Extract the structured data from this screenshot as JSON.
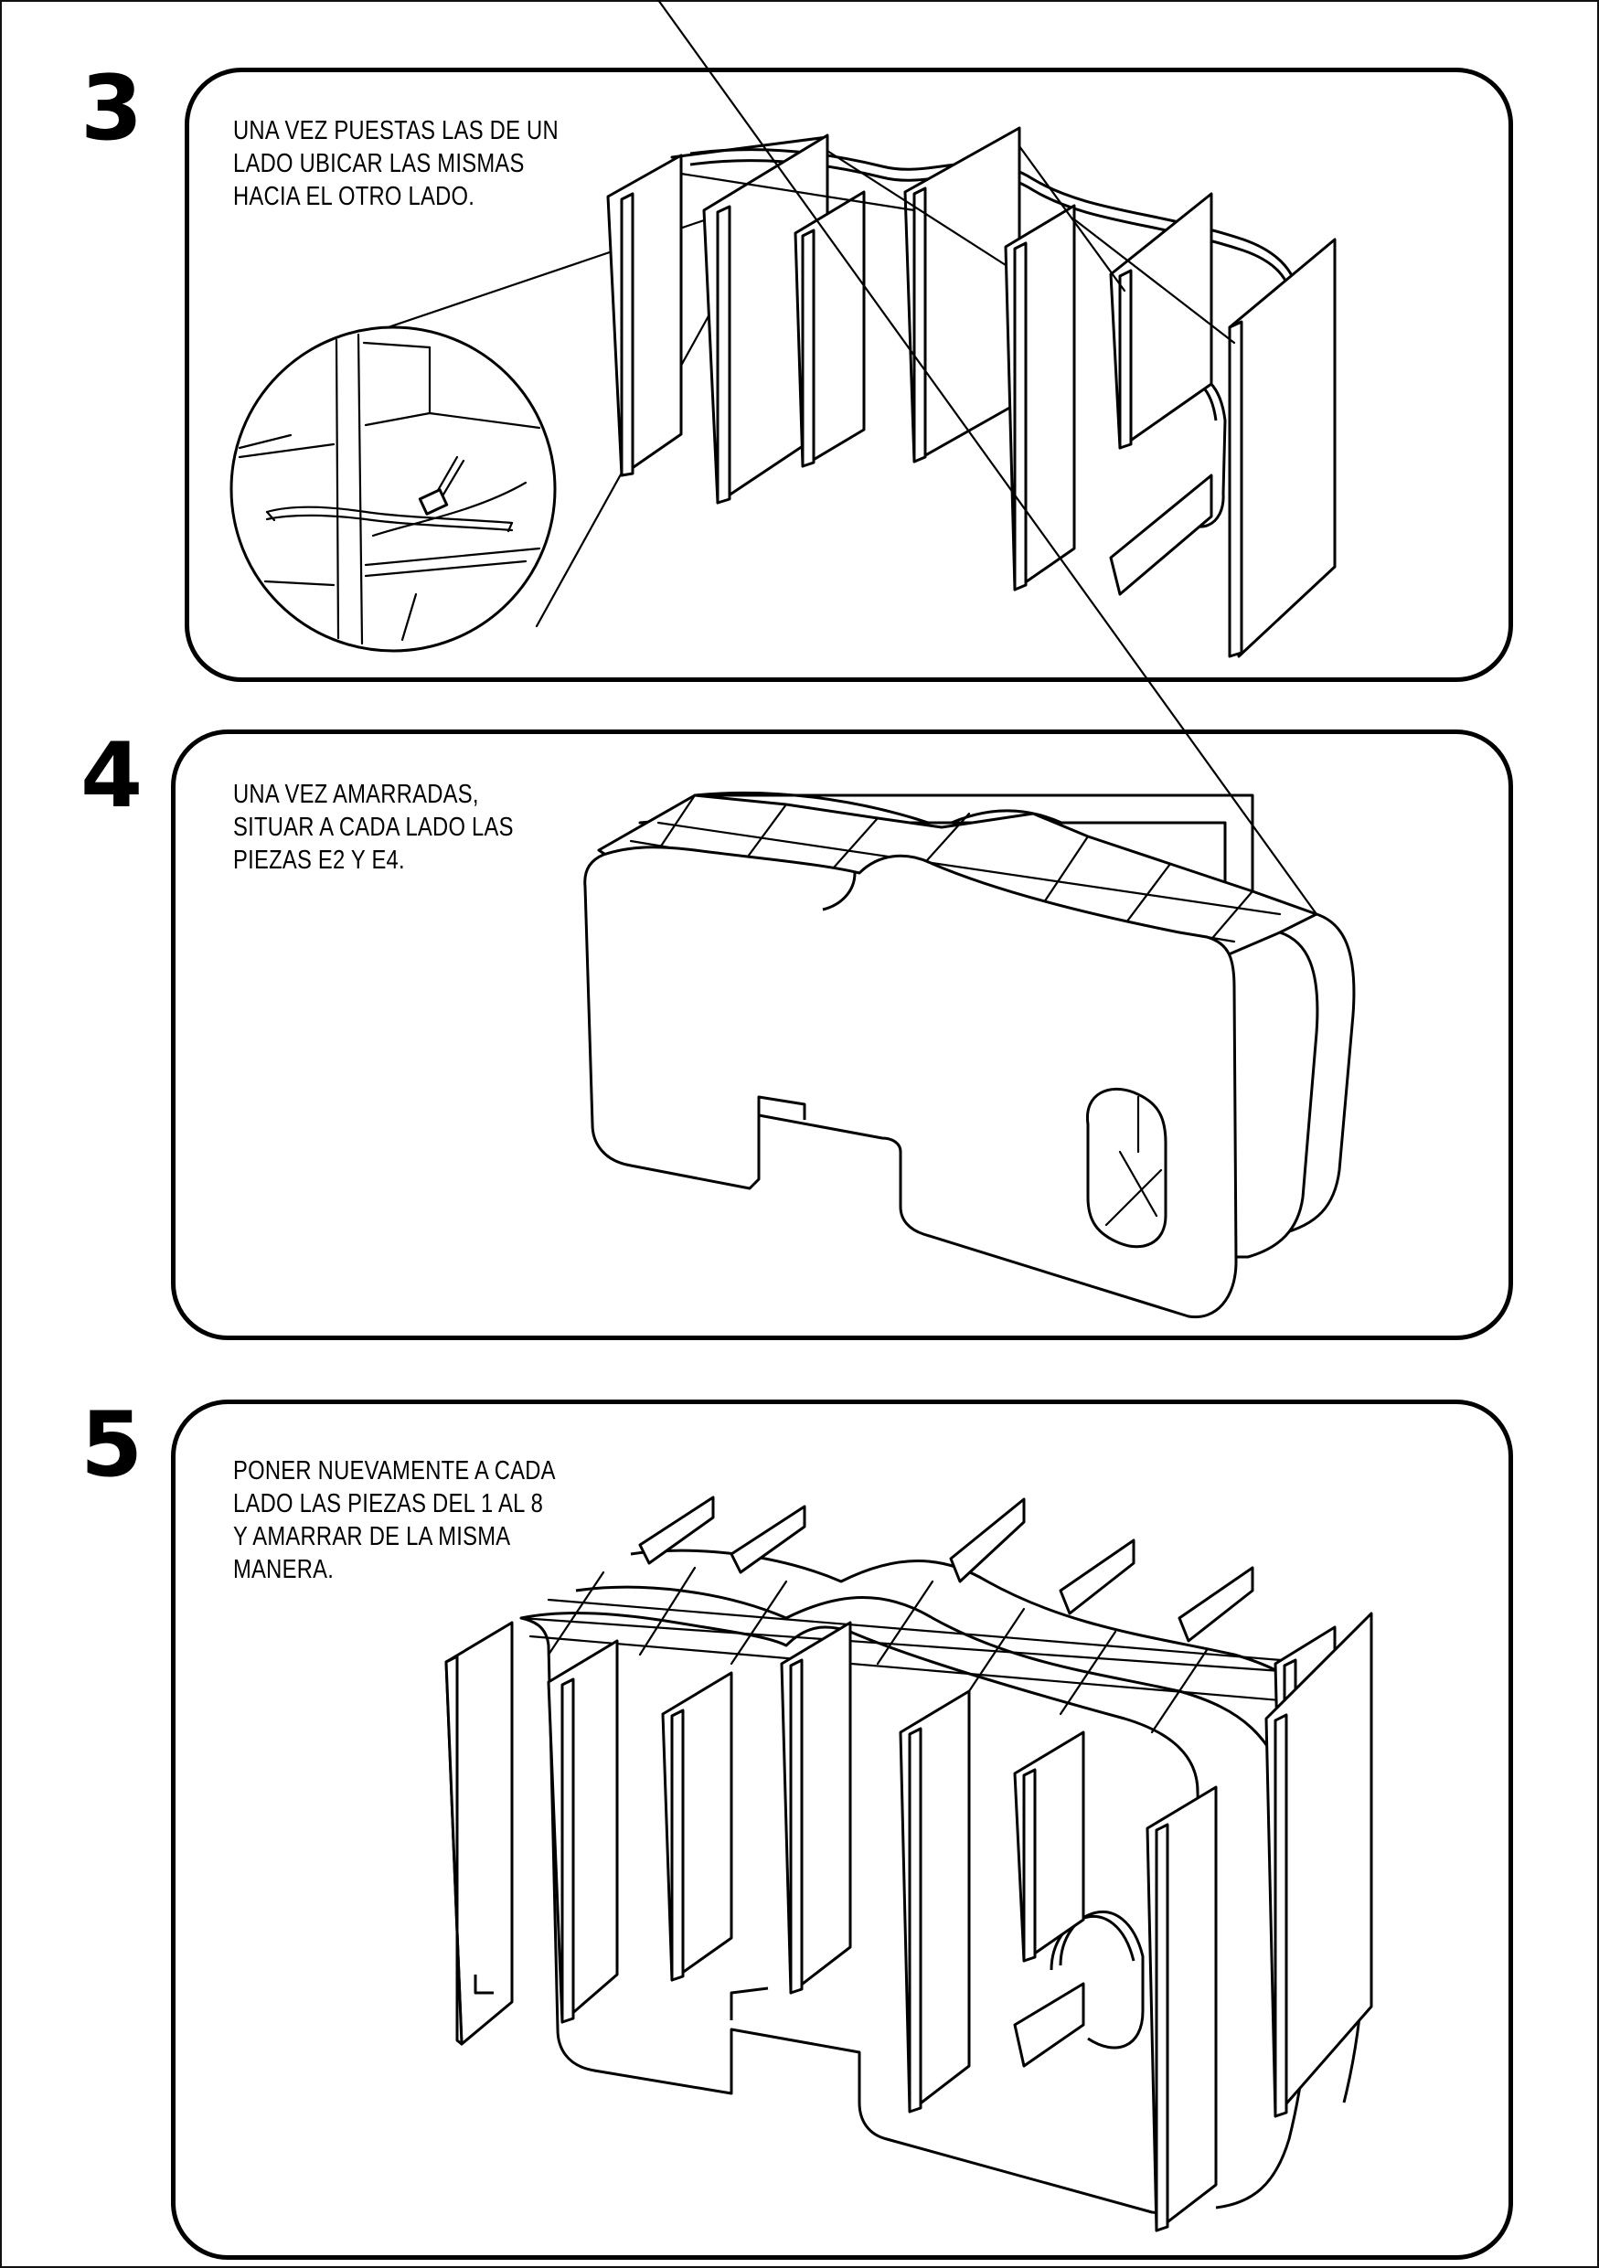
{
  "steps": [
    {
      "number": "3",
      "text": "UNA VEZ PUESTAS LAS DE UN\nLADO UBICAR LAS MISMAS\nHACIA EL OTRO LADO."
    },
    {
      "number": "4",
      "text": "UNA VEZ AMARRADAS,\nSITUAR A CADA LADO LAS\nPIEZAS E2 Y E4."
    },
    {
      "number": "5",
      "text": "PONER NUEVAMENTE A CADA\nLADO LAS PIEZAS DEL 1 AL 8\nY AMARRAR DE LA MISMA\nMANERA."
    }
  ]
}
